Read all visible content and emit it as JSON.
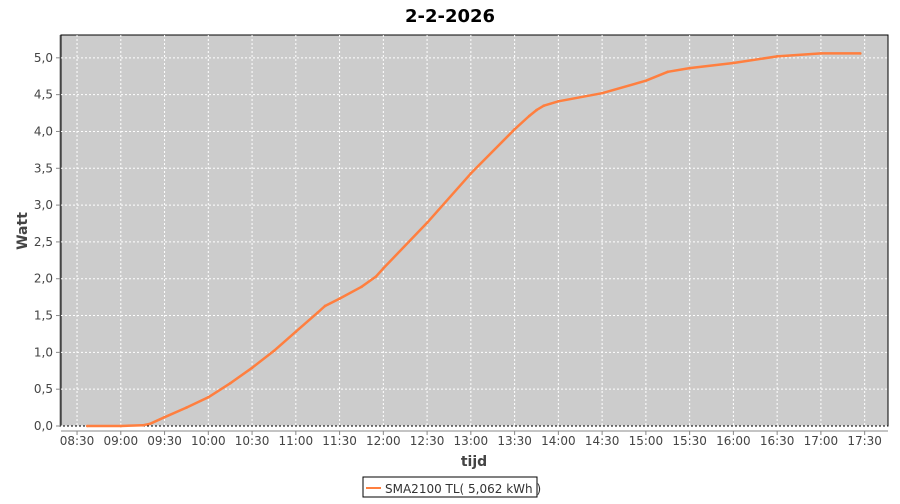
{
  "chart_data": {
    "type": "line",
    "title": "2-2-2026",
    "xlabel": "tijd",
    "ylabel": "Watt",
    "xlim": [
      "08:19",
      "17:46"
    ],
    "ylim": [
      0,
      5.31
    ],
    "x_ticks": [
      "08:30",
      "09:00",
      "09:30",
      "10:00",
      "10:30",
      "11:00",
      "11:30",
      "12:00",
      "12:30",
      "13:00",
      "13:30",
      "14:00",
      "14:30",
      "15:00",
      "15:30",
      "16:00",
      "16:30",
      "17:00",
      "17:30"
    ],
    "y_ticks": [
      "0,0",
      "0,5",
      "1,0",
      "1,5",
      "2,0",
      "2,5",
      "3,0",
      "3,5",
      "4,0",
      "4,5",
      "5,0"
    ],
    "grid": true,
    "legend_position": "bottom",
    "background": "#cccccc",
    "series": [
      {
        "name": "SMA2100 TL( 5,062 kWh )",
        "color": "#ff7f3f",
        "x": [
          "08:37",
          "09:00",
          "09:15",
          "09:20",
          "09:30",
          "09:45",
          "10:00",
          "10:15",
          "10:30",
          "10:45",
          "11:00",
          "11:15",
          "11:20",
          "11:30",
          "11:45",
          "11:55",
          "12:00",
          "12:30",
          "13:00",
          "13:30",
          "13:40",
          "13:45",
          "13:50",
          "14:00",
          "14:30",
          "15:00",
          "15:15",
          "15:30",
          "16:00",
          "16:30",
          "17:00",
          "17:27"
        ],
        "y": [
          0,
          0,
          0.01,
          0.03,
          0.12,
          0.25,
          0.39,
          0.58,
          0.79,
          1.02,
          1.28,
          1.54,
          1.63,
          1.73,
          1.89,
          2.03,
          2.14,
          2.76,
          3.43,
          4.03,
          4.21,
          4.29,
          4.35,
          4.41,
          4.52,
          4.69,
          4.81,
          4.86,
          4.93,
          5.02,
          5.06,
          5.06
        ]
      }
    ]
  }
}
